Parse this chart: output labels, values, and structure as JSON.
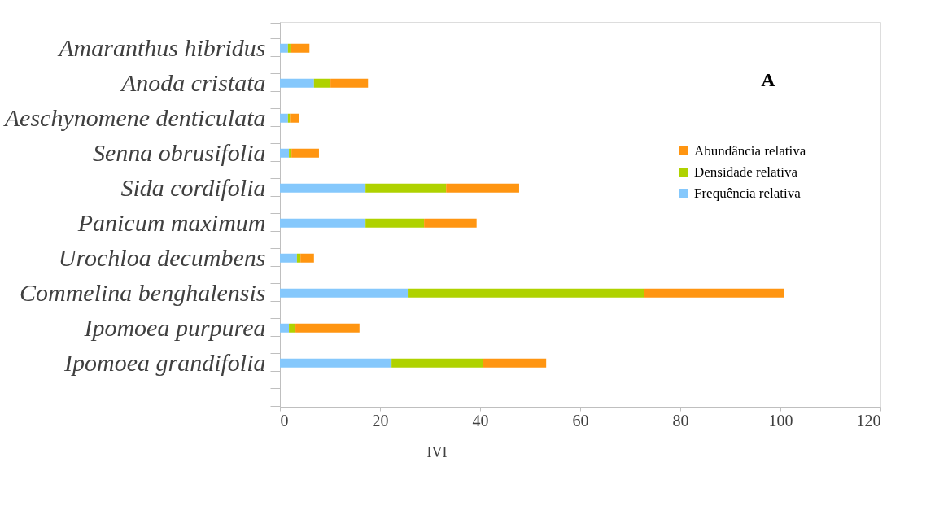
{
  "chart_data": {
    "type": "bar",
    "orientation": "horizontal",
    "stacked": true,
    "categories": [
      null,
      "Amaranthus hibridus",
      null,
      "Anoda cristata",
      null,
      "Aeschynomene denticulata",
      null,
      "Senna obrusifolia",
      null,
      "Sida cordifolia",
      null,
      "Panicum maximum",
      null,
      "Urochloa decumbens",
      null,
      "Commelina benghalensis",
      null,
      "Ipomoea purpurea",
      null,
      "Ipomoea grandifolia",
      null,
      null
    ],
    "series": [
      {
        "name": "Frequência relativa",
        "color": "#85c8fc",
        "values": [
          null,
          1.6,
          null,
          6.8,
          null,
          1.6,
          null,
          1.8,
          null,
          17.1,
          null,
          17.1,
          null,
          3.4,
          null,
          25.7,
          null,
          1.8,
          null,
          22.3,
          null,
          null
        ]
      },
      {
        "name": "Densidade relativa",
        "color": "#afd200",
        "values": [
          null,
          0.5,
          null,
          3.3,
          null,
          0.4,
          null,
          0.5,
          null,
          16.1,
          null,
          11.7,
          null,
          0.7,
          null,
          47.0,
          null,
          1.3,
          null,
          18.2,
          null,
          null
        ]
      },
      {
        "name": "Abundância relativa",
        "color": "#ff9511",
        "values": [
          null,
          3.8,
          null,
          7.5,
          null,
          1.9,
          null,
          5.5,
          null,
          14.6,
          null,
          10.5,
          null,
          2.7,
          null,
          28.1,
          null,
          12.8,
          null,
          12.7,
          null,
          null
        ]
      }
    ],
    "xlim": [
      0,
      120
    ],
    "xticks": [
      0,
      20,
      40,
      60,
      80,
      100,
      120
    ],
    "xlabel": "IVI",
    "legend": "top right",
    "grid": false,
    "annotations": [
      "A"
    ]
  }
}
